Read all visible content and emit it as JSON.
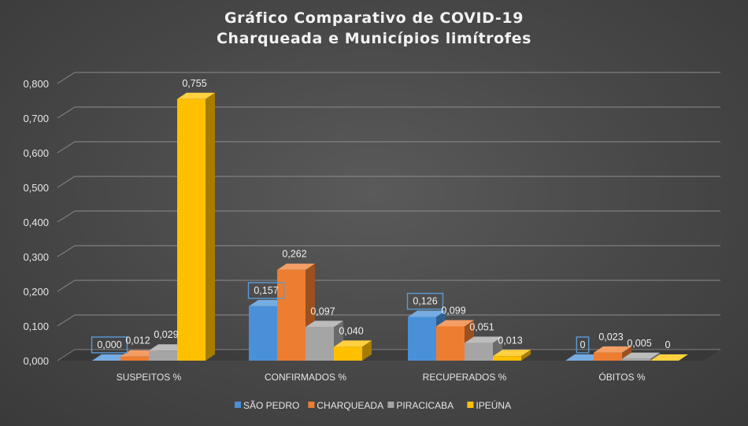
{
  "chart_data": {
    "type": "bar",
    "title": "Gráfico Comparativo de COVID-19",
    "subtitle": "Charqueada e Municípios limítrofes",
    "categories": [
      "SUSPEITOS %",
      "CONFIRMADOS %",
      "RECUPERADOS %",
      "ÓBITOS  %"
    ],
    "series": [
      {
        "name": "SÃO PEDRO",
        "color": "#4a90d9",
        "values": [
          0.0,
          0.157,
          0.126,
          0
        ],
        "labels": [
          "0,000",
          "0,157",
          "0,126",
          "0"
        ],
        "boxed": [
          true,
          true,
          true,
          true
        ]
      },
      {
        "name": "CHARQUEADA",
        "color": "#ed7d31",
        "values": [
          0.012,
          0.262,
          0.099,
          0.023
        ],
        "labels": [
          "0,012",
          "0,262",
          "0,099",
          "0,023"
        ],
        "boxed": [
          false,
          false,
          false,
          false
        ]
      },
      {
        "name": "PIRACICABA",
        "color": "#a5a5a5",
        "values": [
          0.029,
          0.097,
          0.051,
          0.005
        ],
        "labels": [
          "0,029",
          "0,097",
          "0,051",
          "0,005"
        ],
        "boxed": [
          false,
          false,
          false,
          false
        ]
      },
      {
        "name": "IPEÚNA",
        "color": "#ffc000",
        "values": [
          0.755,
          0.04,
          0.013,
          0
        ],
        "labels": [
          "0,755",
          "0,040",
          "0,013",
          "0"
        ],
        "boxed": [
          false,
          false,
          false,
          false
        ]
      }
    ],
    "ylim": [
      0,
      0.8
    ],
    "yticks": [
      0,
      0.1,
      0.2,
      0.3,
      0.4,
      0.5,
      0.6,
      0.7,
      0.8
    ],
    "ytick_labels": [
      "0,000",
      "0,100",
      "0,200",
      "0,300",
      "0,400",
      "0,500",
      "0,600",
      "0,700",
      "0,800"
    ],
    "grid": true,
    "legend_position": "bottom",
    "style": "3d-clustered-column"
  }
}
